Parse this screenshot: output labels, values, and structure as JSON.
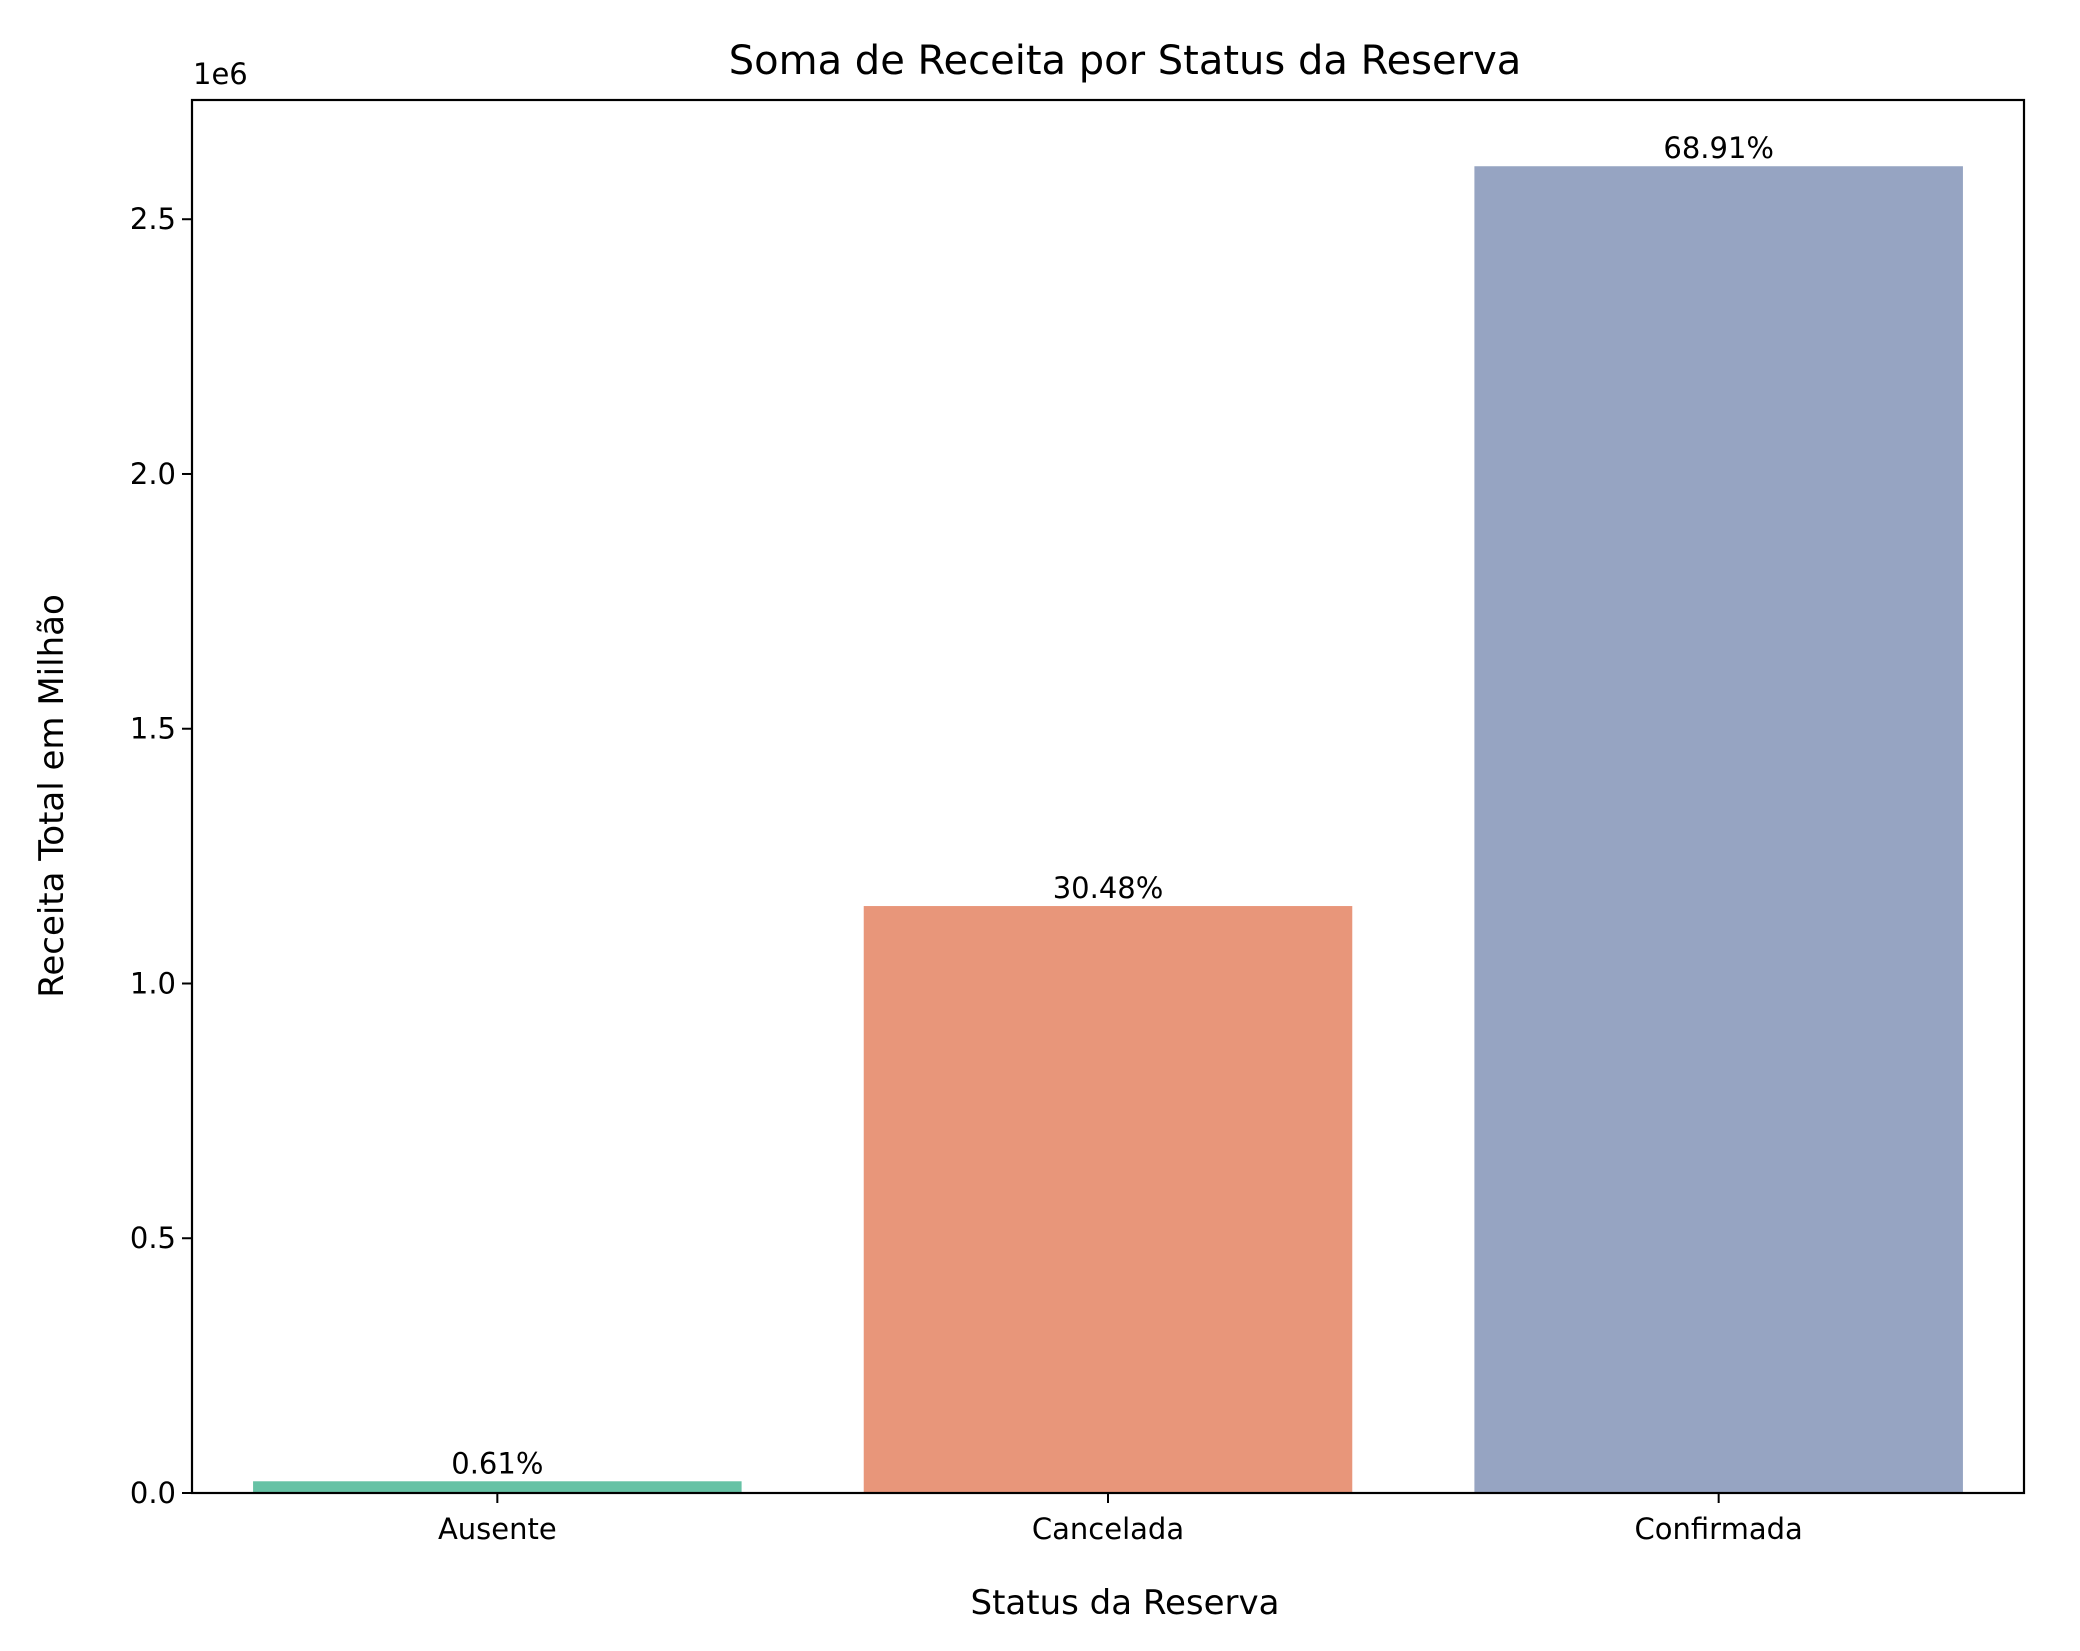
{
  "chart_data": {
    "type": "bar",
    "title": "Soma de Receita por Status da Reserva",
    "xlabel": "Status da Reserva",
    "ylabel": "Receita Total em Milhão",
    "y_offset_label": "1e6",
    "categories": [
      "Ausente",
      "Cancelada",
      "Confirmada"
    ],
    "values": [
      23000,
      1152000,
      2604000
    ],
    "data_labels": [
      "0.61%",
      "30.48%",
      "68.91%"
    ],
    "colors": [
      "#66c2a5",
      "#e8967a",
      "#96a4c2"
    ],
    "ylim": [
      0,
      2734000
    ],
    "yticks": [
      0,
      500000,
      1000000,
      1500000,
      2000000,
      2500000
    ],
    "ytick_labels": [
      "0.0",
      "0.5",
      "1.0",
      "1.5",
      "2.0",
      "2.5"
    ],
    "grid": false,
    "legend": "none"
  }
}
